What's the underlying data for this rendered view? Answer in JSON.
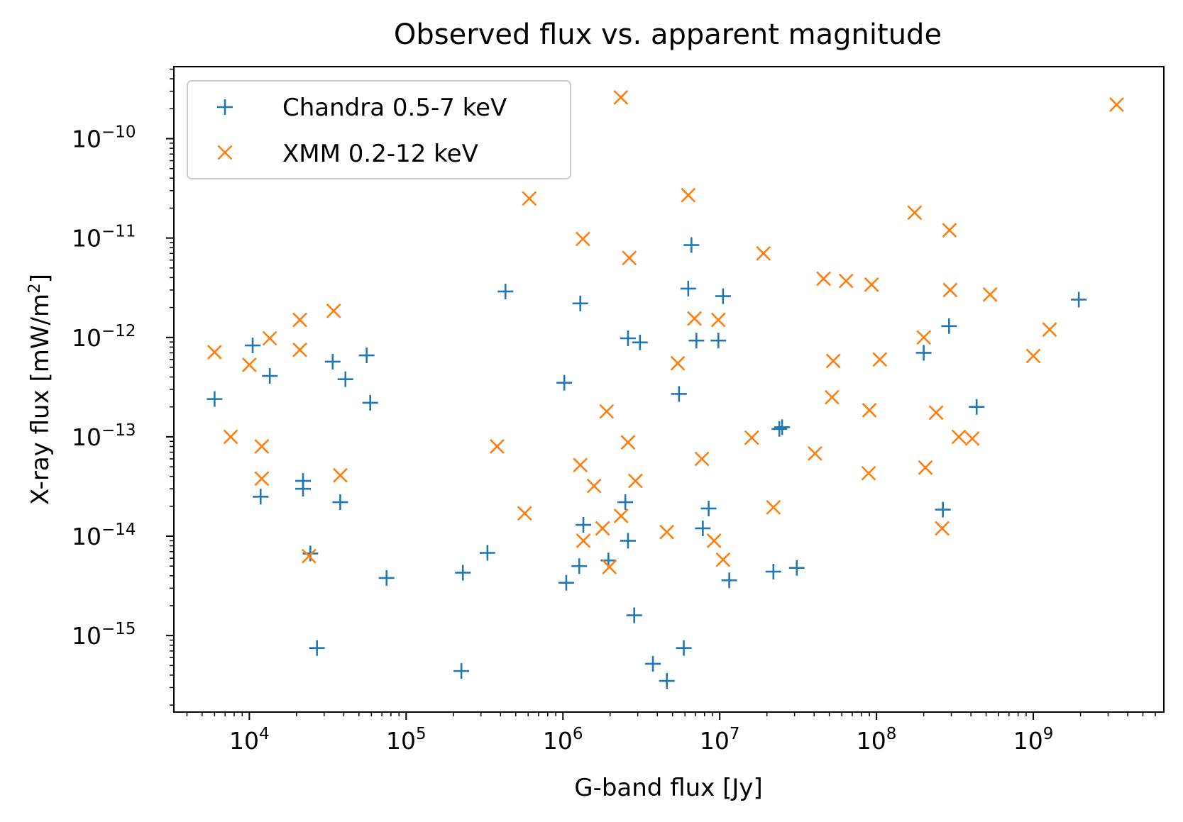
{
  "chart_data": {
    "type": "scatter",
    "title": "Observed flux vs. apparent magnitude",
    "xlabel": "G-band flux [Jy]",
    "ylabel_main": "X-ray flux [mW/m",
    "ylabel_sup": "2",
    "ylabel_end": "]",
    "xscale": "log",
    "yscale": "log",
    "xlim": [
      3300,
      6800000000
    ],
    "ylim": [
      1.7e-16,
      5.3e-10
    ],
    "x_ticks": [
      {
        "value": 10000,
        "base": "10",
        "exp": "4"
      },
      {
        "value": 100000,
        "base": "10",
        "exp": "5"
      },
      {
        "value": 1000000,
        "base": "10",
        "exp": "6"
      },
      {
        "value": 10000000,
        "base": "10",
        "exp": "7"
      },
      {
        "value": 100000000,
        "base": "10",
        "exp": "8"
      },
      {
        "value": 1000000000,
        "base": "10",
        "exp": "9"
      }
    ],
    "y_ticks": [
      {
        "value": 1e-15,
        "base": "10",
        "exp": "−15"
      },
      {
        "value": 1e-14,
        "base": "10",
        "exp": "−14"
      },
      {
        "value": 1e-13,
        "base": "10",
        "exp": "−13"
      },
      {
        "value": 1e-12,
        "base": "10",
        "exp": "−12"
      },
      {
        "value": 1e-11,
        "base": "10",
        "exp": "−11"
      },
      {
        "value": 1e-10,
        "base": "10",
        "exp": "−10"
      }
    ],
    "grid": false,
    "legend_position": "top-left",
    "series": [
      {
        "name": "Chandra 0.5-7 keV",
        "marker": "plus",
        "color": "#1f77b4",
        "points": [
          [
            6000,
            2.4e-13
          ],
          [
            10500,
            8.3e-13
          ],
          [
            13500,
            4.1e-13
          ],
          [
            11800,
            2.5e-14
          ],
          [
            22000,
            3.6e-14
          ],
          [
            22000,
            3e-14
          ],
          [
            24500,
            6.7e-15
          ],
          [
            27000,
            7.5e-16
          ],
          [
            34000,
            5.7e-13
          ],
          [
            41000,
            3.8e-13
          ],
          [
            38000,
            2.2e-14
          ],
          [
            56000,
            6.6e-13
          ],
          [
            59000,
            2.2e-13
          ],
          [
            75000,
            3.8e-15
          ],
          [
            225000,
            4.4e-16
          ],
          [
            230000,
            4.3e-15
          ],
          [
            330000,
            6.8e-15
          ],
          [
            430000,
            2.9e-12
          ],
          [
            1020000,
            3.5e-13
          ],
          [
            1050000,
            3.4e-15
          ],
          [
            1290000,
            2.2e-12
          ],
          [
            1270000,
            5e-15
          ],
          [
            1350000,
            1.3e-14
          ],
          [
            1950000,
            5.7e-15
          ],
          [
            2500000,
            2.2e-14
          ],
          [
            2600000,
            9e-15
          ],
          [
            2600000,
            9.8e-13
          ],
          [
            3100000,
            8.9e-13
          ],
          [
            2850000,
            1.6e-15
          ],
          [
            3750000,
            5.2e-16
          ],
          [
            4600000,
            3.5e-16
          ],
          [
            5500000,
            2.7e-13
          ],
          [
            5900000,
            7.5e-16
          ],
          [
            6300000,
            3.1e-12
          ],
          [
            6600000,
            8.5e-12
          ],
          [
            7100000,
            9.3e-13
          ],
          [
            7800000,
            1.2e-14
          ],
          [
            8500000,
            1.9e-14
          ],
          [
            9800000,
            9.3e-13
          ],
          [
            10500000,
            2.6e-12
          ],
          [
            11500000,
            3.6e-15
          ],
          [
            22000000,
            4.4e-15
          ],
          [
            24000000,
            1.2e-13
          ],
          [
            25000000,
            1.25e-13
          ],
          [
            31000000,
            4.8e-15
          ],
          [
            200000000,
            7e-13
          ],
          [
            290000000,
            1.3e-12
          ],
          [
            265000000,
            1.85e-14
          ],
          [
            435000000,
            2e-13
          ],
          [
            1950000000,
            2.4e-12
          ]
        ]
      },
      {
        "name": "XMM 0.2-12 keV",
        "marker": "x",
        "color": "#ff7f0e",
        "points": [
          [
            6000,
            7.1e-13
          ],
          [
            7600,
            1e-13
          ],
          [
            10000,
            5.3e-13
          ],
          [
            12000,
            8e-14
          ],
          [
            12000,
            3.8e-14
          ],
          [
            13500,
            9.8e-13
          ],
          [
            21000,
            1.5e-12
          ],
          [
            21000,
            7.5e-13
          ],
          [
            24000,
            6.3e-15
          ],
          [
            34500,
            1.85e-12
          ],
          [
            38000,
            4.1e-14
          ],
          [
            380000,
            8e-14
          ],
          [
            570000,
            1.7e-14
          ],
          [
            610000,
            2.5e-11
          ],
          [
            1290000,
            5.2e-14
          ],
          [
            1340000,
            9.8e-12
          ],
          [
            1350000,
            9e-15
          ],
          [
            1580000,
            3.2e-14
          ],
          [
            1790000,
            1.2e-14
          ],
          [
            1900000,
            1.8e-13
          ],
          [
            1980000,
            4.9e-15
          ],
          [
            2350000,
            1.6e-14
          ],
          [
            2340000,
            2.6e-10
          ],
          [
            2600000,
            8.8e-14
          ],
          [
            2650000,
            6.3e-12
          ],
          [
            2900000,
            3.6e-14
          ],
          [
            4600000,
            1.1e-14
          ],
          [
            5400000,
            5.5e-13
          ],
          [
            6300000,
            2.7e-11
          ],
          [
            6900000,
            1.55e-12
          ],
          [
            7700000,
            6e-14
          ],
          [
            9200000,
            9e-15
          ],
          [
            9800000,
            1.5e-12
          ],
          [
            10500000,
            5.8e-15
          ],
          [
            16000000,
            9.8e-14
          ],
          [
            19000000,
            7e-12
          ],
          [
            22000000,
            1.95e-14
          ],
          [
            40500000,
            6.8e-14
          ],
          [
            46000000,
            3.9e-12
          ],
          [
            52000000,
            2.5e-13
          ],
          [
            53000000,
            5.8e-13
          ],
          [
            64000000,
            3.7e-12
          ],
          [
            90000000,
            1.85e-13
          ],
          [
            89000000,
            4.3e-14
          ],
          [
            93000000,
            3.4e-12
          ],
          [
            105000000,
            6e-13
          ],
          [
            175000000,
            1.8e-11
          ],
          [
            200000000,
            1e-12
          ],
          [
            205000000,
            4.9e-14
          ],
          [
            240000000,
            1.75e-13
          ],
          [
            262000000,
            1.2e-14
          ],
          [
            292000000,
            1.2e-11
          ],
          [
            295000000,
            3e-12
          ],
          [
            335000000,
            1e-13
          ],
          [
            408000000,
            9.6e-14
          ],
          [
            530000000,
            2.7e-12
          ],
          [
            1000000000,
            6.5e-13
          ],
          [
            1270000000,
            1.2e-12
          ],
          [
            3400000000,
            2.2e-10
          ]
        ]
      }
    ]
  }
}
